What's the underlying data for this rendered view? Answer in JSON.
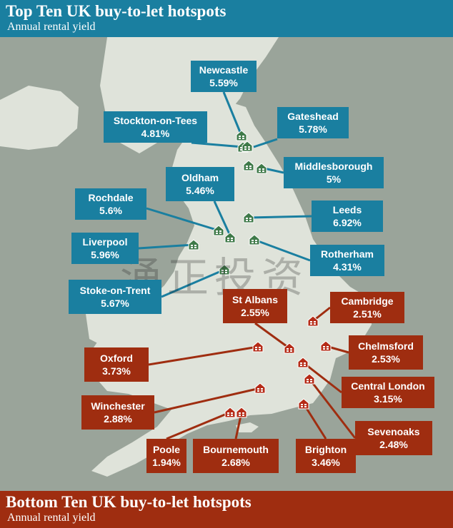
{
  "header": {
    "title": "Top Ten UK buy-to-let hotspots",
    "subtitle": "Annual rental yield"
  },
  "footer": {
    "title": "Bottom Ten UK buy-to-let hotspots",
    "subtitle": "Annual rental yield"
  },
  "watermark": "涌正投资",
  "colors": {
    "top_accent": "#1a7fa0",
    "bottom_accent": "#9f2d10",
    "land": "#dfe3da",
    "sea": "#9aa49a",
    "top_icon": "#3f7a49",
    "bottom_icon": "#b52b17"
  },
  "top_hotspots": [
    {
      "name": "Newcastle",
      "yield": "5.59%"
    },
    {
      "name": "Stockton-on-Tees",
      "yield": "4.81%"
    },
    {
      "name": "Gateshead",
      "yield": "5.78%"
    },
    {
      "name": "Middlesborough",
      "yield": "5%"
    },
    {
      "name": "Oldham",
      "yield": "5.46%"
    },
    {
      "name": "Rochdale",
      "yield": "5.6%"
    },
    {
      "name": "Leeds",
      "yield": "6.92%"
    },
    {
      "name": "Liverpool",
      "yield": "5.96%"
    },
    {
      "name": "Rotherham",
      "yield": "4.31%"
    },
    {
      "name": "Stoke-on-Trent",
      "yield": "5.67%"
    }
  ],
  "bottom_hotspots": [
    {
      "name": "St Albans",
      "yield": "2.55%"
    },
    {
      "name": "Cambridge",
      "yield": "2.51%"
    },
    {
      "name": "Oxford",
      "yield": "3.73%"
    },
    {
      "name": "Chelmsford",
      "yield": "2.53%"
    },
    {
      "name": "Central London",
      "yield": "3.15%"
    },
    {
      "name": "Winchester",
      "yield": "2.88%"
    },
    {
      "name": "Sevenoaks",
      "yield": "2.48%"
    },
    {
      "name": "Poole",
      "yield": "1.94%"
    },
    {
      "name": "Bournemouth",
      "yield": "2.68%"
    },
    {
      "name": "Brighton",
      "yield": "3.46%"
    }
  ]
}
